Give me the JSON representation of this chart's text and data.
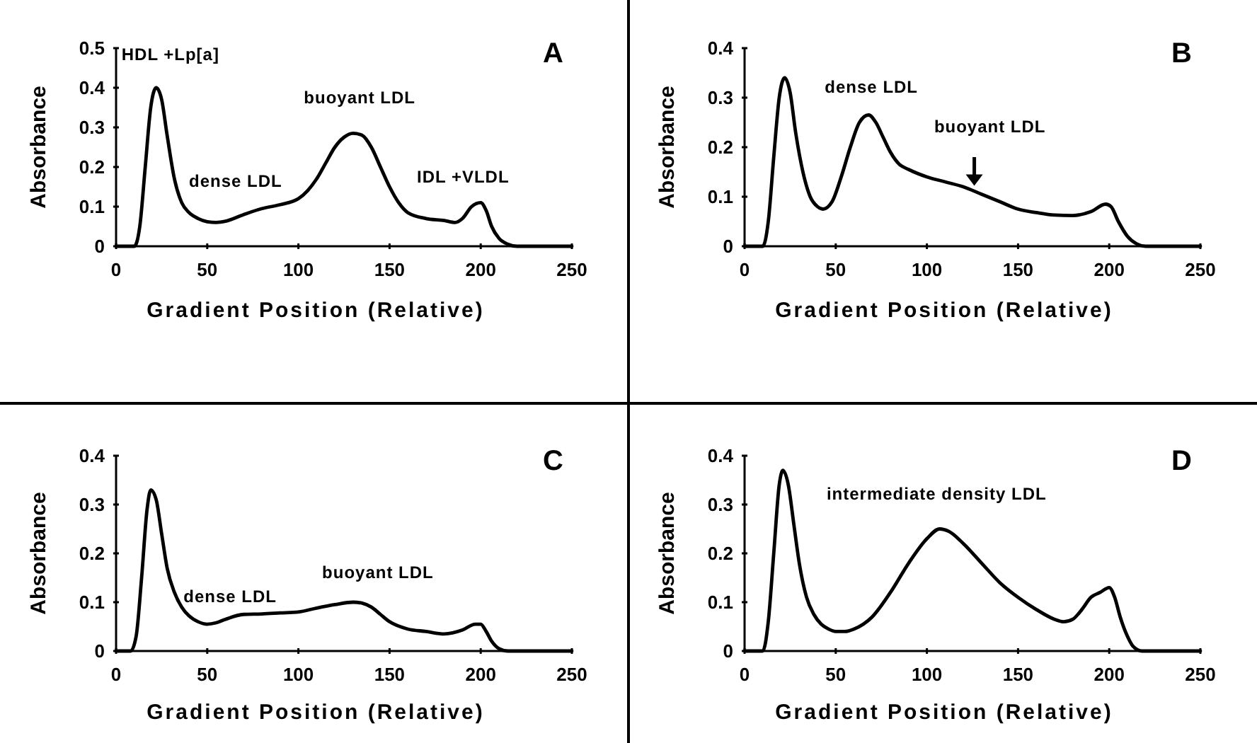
{
  "chart_data": [
    {
      "type": "line",
      "title": "A",
      "xlabel": "Gradient Position (Relative)",
      "ylabel": "Absorbance",
      "xlim": [
        0,
        250
      ],
      "xticks": [
        0,
        50,
        100,
        150,
        200,
        250
      ],
      "ylim": [
        0,
        0.5
      ],
      "yticks": [
        0,
        0.1,
        0.2,
        0.3,
        0.4,
        0.5
      ],
      "marker": "none",
      "line_style": "solid",
      "annotations": [
        "HDL +Lp[a]",
        "dense LDL",
        "buoyant LDL",
        "IDL +VLDL"
      ],
      "series": [
        {
          "color": "#000000",
          "x": [
            0,
            10,
            13,
            16,
            19,
            22,
            25,
            28,
            32,
            36,
            40,
            45,
            50,
            55,
            60,
            70,
            80,
            90,
            100,
            105,
            110,
            115,
            120,
            125,
            130,
            135,
            140,
            145,
            150,
            155,
            160,
            170,
            180,
            186,
            190,
            195,
            200,
            203,
            206,
            210,
            215,
            220,
            250
          ],
          "values": [
            0,
            0,
            0.05,
            0.2,
            0.35,
            0.4,
            0.37,
            0.28,
            0.17,
            0.11,
            0.085,
            0.07,
            0.062,
            0.06,
            0.063,
            0.08,
            0.095,
            0.105,
            0.12,
            0.14,
            0.17,
            0.21,
            0.25,
            0.275,
            0.285,
            0.28,
            0.25,
            0.2,
            0.15,
            0.11,
            0.085,
            0.07,
            0.065,
            0.06,
            0.07,
            0.1,
            0.11,
            0.09,
            0.05,
            0.02,
            0.005,
            0,
            0
          ]
        }
      ]
    },
    {
      "type": "line",
      "title": "B",
      "xlabel": "Gradient Position (Relative)",
      "ylabel": "Absorbance",
      "xlim": [
        0,
        250
      ],
      "xticks": [
        0,
        50,
        100,
        150,
        200,
        250
      ],
      "ylim": [
        0,
        0.4
      ],
      "yticks": [
        0,
        0.1,
        0.2,
        0.3,
        0.4
      ],
      "marker": "none",
      "line_style": "solid",
      "annotations": [
        "dense LDL",
        "buoyant LDL"
      ],
      "series": [
        {
          "color": "#000000",
          "x": [
            0,
            10,
            13,
            16,
            19,
            22,
            25,
            28,
            32,
            36,
            40,
            43,
            48,
            53,
            58,
            63,
            68,
            72,
            76,
            80,
            85,
            90,
            100,
            110,
            120,
            130,
            140,
            150,
            160,
            170,
            180,
            190,
            198,
            201,
            205,
            210,
            215,
            220,
            250
          ],
          "values": [
            0,
            0,
            0.05,
            0.18,
            0.3,
            0.34,
            0.31,
            0.23,
            0.15,
            0.1,
            0.08,
            0.075,
            0.09,
            0.14,
            0.2,
            0.25,
            0.265,
            0.25,
            0.22,
            0.19,
            0.165,
            0.155,
            0.14,
            0.13,
            0.12,
            0.105,
            0.09,
            0.075,
            0.068,
            0.063,
            0.062,
            0.07,
            0.085,
            0.08,
            0.05,
            0.02,
            0.005,
            0,
            0
          ]
        }
      ]
    },
    {
      "type": "line",
      "title": "C",
      "xlabel": "Gradient Position (Relative)",
      "ylabel": "Absorbance",
      "xlim": [
        0,
        250
      ],
      "xticks": [
        0,
        50,
        100,
        150,
        200,
        250
      ],
      "ylim": [
        0,
        0.4
      ],
      "yticks": [
        0,
        0.1,
        0.2,
        0.3,
        0.4
      ],
      "marker": "none",
      "line_style": "solid",
      "annotations": [
        "dense LDL",
        "buoyant LDL"
      ],
      "series": [
        {
          "color": "#000000",
          "x": [
            0,
            8,
            11,
            14,
            17,
            19,
            22,
            25,
            28,
            32,
            36,
            40,
            45,
            50,
            55,
            60,
            70,
            80,
            90,
            100,
            110,
            120,
            130,
            135,
            140,
            145,
            150,
            160,
            170,
            180,
            190,
            197,
            200,
            203,
            206,
            210,
            215,
            250
          ],
          "values": [
            0,
            0,
            0.03,
            0.15,
            0.29,
            0.33,
            0.31,
            0.24,
            0.17,
            0.12,
            0.09,
            0.072,
            0.06,
            0.055,
            0.058,
            0.065,
            0.075,
            0.076,
            0.078,
            0.08,
            0.088,
            0.095,
            0.1,
            0.098,
            0.09,
            0.075,
            0.06,
            0.045,
            0.04,
            0.035,
            0.043,
            0.055,
            0.055,
            0.04,
            0.02,
            0.005,
            0,
            0
          ]
        }
      ]
    },
    {
      "type": "line",
      "title": "D",
      "xlabel": "Gradient Position (Relative)",
      "ylabel": "Absorbance",
      "xlim": [
        0,
        250
      ],
      "xticks": [
        0,
        50,
        100,
        150,
        200,
        250
      ],
      "ylim": [
        0,
        0.4
      ],
      "yticks": [
        0,
        0.1,
        0.2,
        0.3,
        0.4
      ],
      "marker": "none",
      "line_style": "solid",
      "annotations": [
        "intermediate density LDL"
      ],
      "series": [
        {
          "color": "#000000",
          "x": [
            0,
            10,
            13,
            16,
            19,
            21,
            24,
            27,
            30,
            34,
            38,
            42,
            46,
            50,
            55,
            60,
            70,
            80,
            90,
            100,
            107,
            112,
            120,
            130,
            140,
            150,
            160,
            170,
            175,
            180,
            185,
            190,
            195,
            200,
            203,
            206,
            210,
            213,
            218,
            250
          ],
          "values": [
            0,
            0,
            0.06,
            0.2,
            0.34,
            0.37,
            0.34,
            0.26,
            0.18,
            0.11,
            0.075,
            0.055,
            0.045,
            0.04,
            0.04,
            0.045,
            0.07,
            0.12,
            0.18,
            0.23,
            0.25,
            0.245,
            0.22,
            0.18,
            0.14,
            0.11,
            0.085,
            0.065,
            0.06,
            0.065,
            0.085,
            0.11,
            0.12,
            0.13,
            0.11,
            0.07,
            0.03,
            0.01,
            0,
            0
          ]
        }
      ]
    }
  ]
}
